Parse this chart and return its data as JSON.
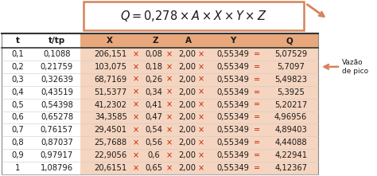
{
  "formula_text": "$Q = 0{,}278 \\times A \\times X \\times Y \\times Z$",
  "headers": [
    "t",
    "t/tp",
    "X",
    "Z",
    "A",
    "Y",
    "Q"
  ],
  "rows": [
    [
      "0,1",
      "0,1088",
      "206,151",
      "0,08",
      "2,00",
      "0,55349",
      "5,07529"
    ],
    [
      "0,2",
      "0,21759",
      "103,075",
      "0,18",
      "2,00",
      "0,55349",
      "5,7097"
    ],
    [
      "0,3",
      "0,32639",
      "68,7169",
      "0,26",
      "2,00",
      "0,55349",
      "5,49823"
    ],
    [
      "0,4",
      "0,43519",
      "51,5377",
      "0,34",
      "2,00",
      "0,55349",
      "5,3925"
    ],
    [
      "0,5",
      "0,54398",
      "41,2302",
      "0,41",
      "2,00",
      "0,55349",
      "5,20217"
    ],
    [
      "0,6",
      "0,65278",
      "34,3585",
      "0,47",
      "2,00",
      "0,55349",
      "4,96956"
    ],
    [
      "0,7",
      "0,76157",
      "29,4501",
      "0,54",
      "2,00",
      "0,55349",
      "4,89403"
    ],
    [
      "0,8",
      "0,87037",
      "25,7688",
      "0,56",
      "2,00",
      "0,55349",
      "4,44088"
    ],
    [
      "0,9",
      "0,97917",
      "22,9056",
      "0,6",
      "2,00",
      "0,55349",
      "4,22941"
    ],
    [
      "1",
      "1,08796",
      "20,6151",
      "0,65",
      "2,00",
      "0,55349",
      "4,12367"
    ]
  ],
  "header_bg": "#e8a87c",
  "row_bg": "#f5d5c0",
  "white_bg": "#ffffff",
  "formula_border": "#d4845a",
  "text_dark": "#1a1a1a",
  "text_red": "#cc2200",
  "arrow_orange": "#d4845a",
  "vazao_label": "Vazão\nde pico",
  "peak_row": 1,
  "fig_w": 4.74,
  "fig_h": 2.21,
  "dpi": 100
}
